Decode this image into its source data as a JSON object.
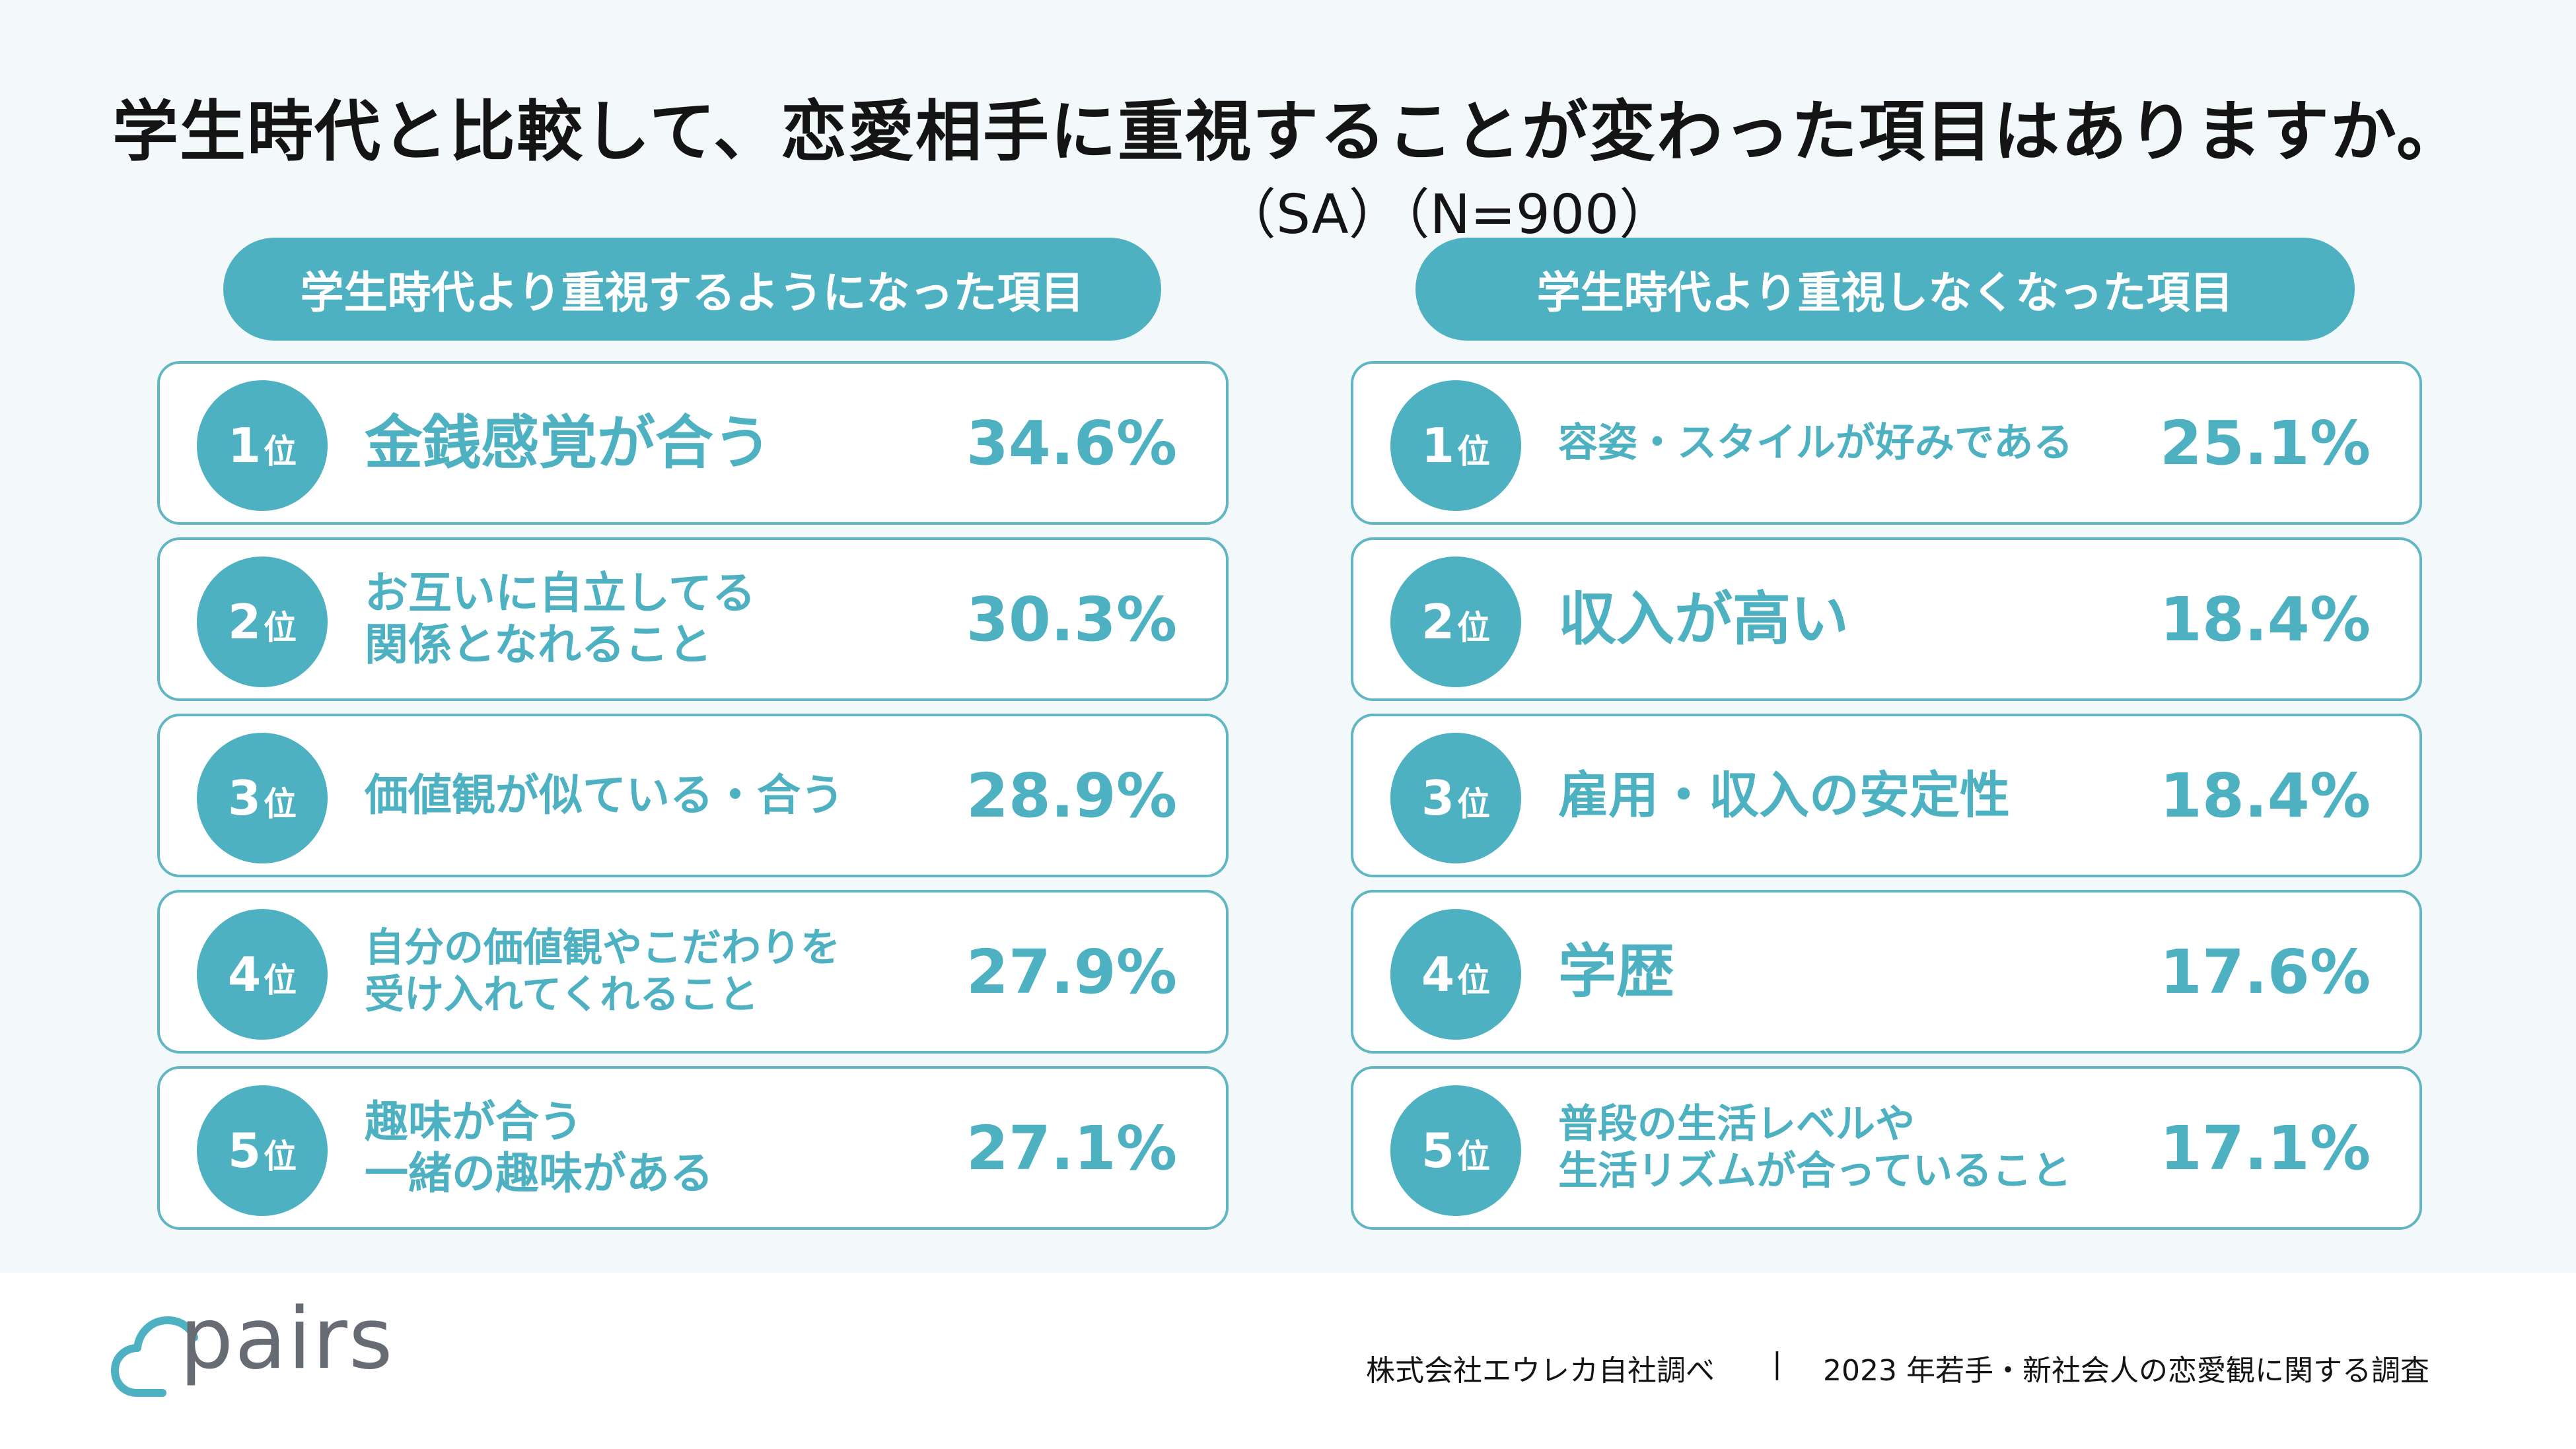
{
  "title": "学生時代と比較して、恋愛相手に重視することが変わった項目はありますか。",
  "subtitle": "（SA）（N=900）",
  "chart_data": [
    {
      "type": "table",
      "title": "学生時代より重視するようになった項目",
      "rank_unit": "位",
      "items": [
        {
          "rank": 1,
          "label": "金銭感覚が合う",
          "value": 34.6,
          "value_text": "34.6%"
        },
        {
          "rank": 2,
          "label": "お互いに自立してる\n関係となれること",
          "value": 30.3,
          "value_text": "30.3%"
        },
        {
          "rank": 3,
          "label": "価値観が似ている・合う",
          "value": 28.9,
          "value_text": "28.9%"
        },
        {
          "rank": 4,
          "label": "自分の価値観やこだわりを\n受け入れてくれること",
          "value": 27.9,
          "value_text": "27.9%"
        },
        {
          "rank": 5,
          "label": "趣味が合う\n一緒の趣味がある",
          "value": 27.1,
          "value_text": "27.1%"
        }
      ]
    },
    {
      "type": "table",
      "title": "学生時代より重視しなくなった項目",
      "rank_unit": "位",
      "items": [
        {
          "rank": 1,
          "label": "容姿・スタイルが好みである",
          "value": 25.1,
          "value_text": "25.1%"
        },
        {
          "rank": 2,
          "label": "収入が高い",
          "value": 18.4,
          "value_text": "18.4%"
        },
        {
          "rank": 3,
          "label": "雇用・収入の安定性",
          "value": 18.4,
          "value_text": "18.4%"
        },
        {
          "rank": 4,
          "label": "学歴",
          "value": 17.6,
          "value_text": "17.6%"
        },
        {
          "rank": 5,
          "label": "普段の生活レベルや\n生活リズムが合っていること",
          "value": 17.1,
          "value_text": "17.1%"
        }
      ]
    }
  ],
  "logo": {
    "text": "pairs"
  },
  "footer": {
    "source": "株式会社エウレカ自社調べ",
    "separator": "|",
    "survey": "2023 年若手・新社会人の恋愛観に関する調査"
  },
  "colors": {
    "accent": "#4eb1c1",
    "border": "#61b6c4",
    "panel_bg": "#f3f9fa",
    "text": "#141414",
    "logo_gray": "#676b73"
  }
}
